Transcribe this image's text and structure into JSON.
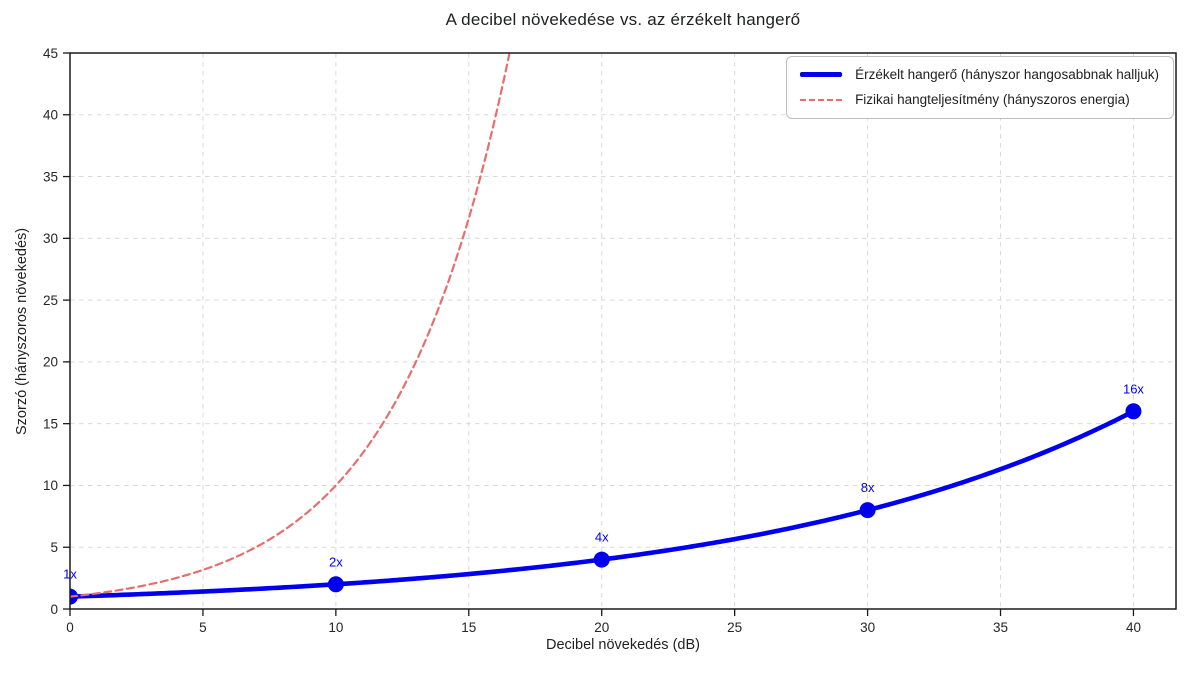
{
  "title": "A decibel növekedése vs. az érzékelt hangerő",
  "chart_data": {
    "type": "line",
    "title": "A decibel növekedése vs. az érzékelt hangerő",
    "xlabel": "Decibel növekedés (dB)",
    "ylabel": "Szorzó (hányszoros növekedés)",
    "xlim": [
      0,
      41.6
    ],
    "ylim": [
      0,
      45
    ],
    "xticks": [
      0,
      5,
      10,
      15,
      20,
      25,
      30,
      35,
      40
    ],
    "yticks": [
      0,
      5,
      10,
      15,
      20,
      25,
      30,
      35,
      40,
      45
    ],
    "grid": true,
    "grid_style": "dashed",
    "legend_position": "upper right",
    "series": [
      {
        "name": "Érzékelt hangerő (hányszor hangosabbnak halljuk)",
        "color": "#0000ee",
        "line_style": "solid",
        "line_width": 4.6,
        "markers": true,
        "marker_radius": 8,
        "curve": {
          "base": 2,
          "x_div": 10,
          "x_range": [
            0,
            40
          ]
        },
        "x": [
          0,
          10,
          20,
          30,
          40
        ],
        "values": [
          1,
          2,
          4,
          8,
          16
        ],
        "point_labels": [
          "1x",
          "2x",
          "4x",
          "8x",
          "16x"
        ]
      },
      {
        "name": "Fizikai hangteljesítmény (hányszoros energia)",
        "color": "#e66e6e",
        "line_style": "dashed",
        "line_width": 2.2,
        "markers": false,
        "curve": {
          "base": 10,
          "x_div": 10,
          "x_range": [
            0,
            17
          ]
        },
        "x": [
          0,
          5,
          10,
          15,
          16.5
        ],
        "values": [
          1,
          3.16,
          10,
          31.62,
          44.7
        ],
        "point_labels": []
      }
    ]
  },
  "colors": {
    "perceived_line": "#0000ee",
    "physical_line": "#e66e6e",
    "grid": "#d9d9d9",
    "axis": "#1a1a1a",
    "text": "#262626",
    "legend_border": "#bdbdbd"
  }
}
